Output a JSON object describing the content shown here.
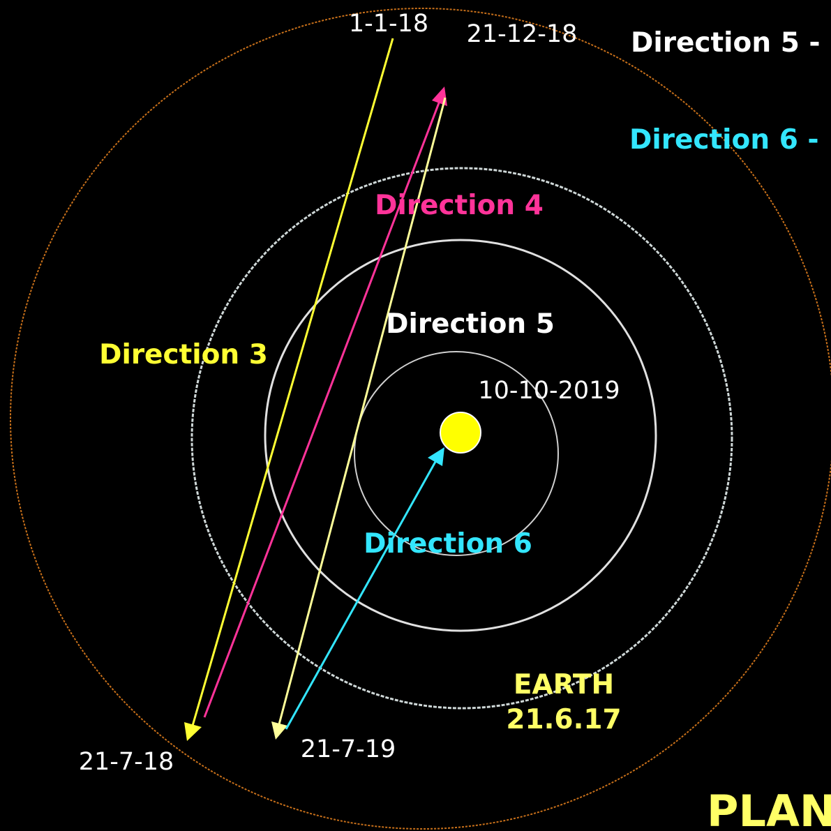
{
  "labels": {
    "date_top_left": "1-1-18",
    "date_top_right": "21-12-18",
    "legend_direction_5": "Direction 5 -",
    "legend_direction_6": "Direction 6 -",
    "direction_4": "Direction 4",
    "direction_5": "Direction 5",
    "direction_3": "Direction 3",
    "date_center": "10-10-2019",
    "direction_6": "Direction 6",
    "earth": "EARTH",
    "earth_date": "21.6.17",
    "date_bottom_left": "21-7-18",
    "date_bottom_mid": "21-7-19",
    "plan": "PLAN"
  }
}
